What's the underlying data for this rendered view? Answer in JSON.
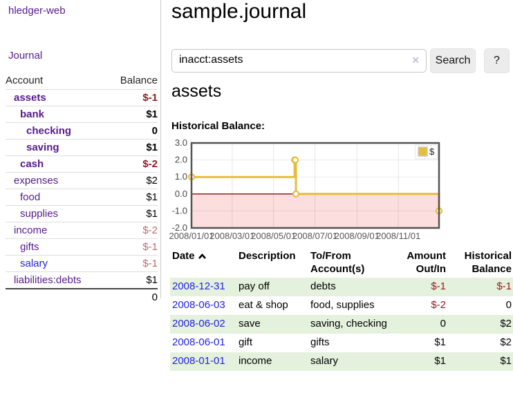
{
  "app": {
    "brand": "hledger-web"
  },
  "sidebar": {
    "journal_link": "Journal",
    "accounts_table": {
      "headers": {
        "account": "Account",
        "balance": "Balance"
      },
      "rows": [
        {
          "name": "assets",
          "balance": "$-1"
        },
        {
          "name": "bank",
          "balance": "$1"
        },
        {
          "name": "checking",
          "balance": "0"
        },
        {
          "name": "saving",
          "balance": "$1"
        },
        {
          "name": "cash",
          "balance": "$-2"
        },
        {
          "name": "expenses",
          "balance": "$2"
        },
        {
          "name": "food",
          "balance": "$1"
        },
        {
          "name": "supplies",
          "balance": "$1"
        },
        {
          "name": "income",
          "balance": "$-2"
        },
        {
          "name": "gifts",
          "balance": "$-1"
        },
        {
          "name": "salary",
          "balance": "$-1"
        },
        {
          "name": "liabilities:debts",
          "balance": "$1"
        }
      ],
      "total": "0"
    }
  },
  "main": {
    "title": "sample.journal",
    "search": {
      "value": "inacct:assets",
      "clear_icon": "✕",
      "search_button": "Search",
      "help_button": "?"
    },
    "account_heading": "assets",
    "chart_heading": "Historical Balance:"
  },
  "chart_data": {
    "type": "line",
    "style": "step",
    "title": "Historical Balance:",
    "series": [
      {
        "name": "$",
        "color": "#e6be3c",
        "points": [
          [
            "2008-01-01",
            1
          ],
          [
            "2008-06-01",
            2
          ],
          [
            "2008-06-02",
            2
          ],
          [
            "2008-06-03",
            0
          ],
          [
            "2008-12-31",
            -1
          ]
        ]
      }
    ],
    "x_range": [
      "2008-01-01",
      "2008-12-31"
    ],
    "ylim": [
      -2,
      3
    ],
    "y_ticks": [
      "3.0",
      "2.0",
      "1.0",
      "0.0",
      "-1.0",
      "-2.0"
    ],
    "x_ticks": [
      "2008/01/01",
      "2008/03/01",
      "2008/05/01",
      "2008/07/01",
      "2008/09/01",
      "2008/11/01"
    ],
    "legend_position": "top-right",
    "grid": true,
    "negative_region_color": "#fcdede",
    "zero_line_color": "#9d1c20"
  },
  "register_table": {
    "headers": {
      "date": "Date",
      "description": "Description",
      "accounts": "To/From Account(s)",
      "amount": "Amount Out/In",
      "balance": "Historical Balance"
    },
    "rows": [
      {
        "date": "2008-12-31",
        "description": "pay off",
        "accounts": "debts",
        "amount": "$-1",
        "balance": "$-1"
      },
      {
        "date": "2008-06-03",
        "description": "eat & shop",
        "accounts": "food, supplies",
        "amount": "$-2",
        "balance": "0"
      },
      {
        "date": "2008-06-02",
        "description": "save",
        "accounts": "saving, checking",
        "amount": "0",
        "balance": "$2"
      },
      {
        "date": "2008-06-01",
        "description": "gift",
        "accounts": "gifts",
        "amount": "$1",
        "balance": "$2"
      },
      {
        "date": "2008-01-01",
        "description": "income",
        "accounts": "salary",
        "amount": "$1",
        "balance": "$1"
      }
    ]
  },
  "colors": {
    "link_purple": "#551a8b",
    "link_blue": "#2222dd",
    "negative_strong": "#97161f",
    "negative_soft": "#bb6a6a",
    "row_stripe_green": "#e4f1dc",
    "chart_gold": "#e6be3c",
    "chart_negative_bg": "#fcdede",
    "chart_zero_line": "#9d1c20",
    "sidebar_divider": "#cccccc"
  }
}
